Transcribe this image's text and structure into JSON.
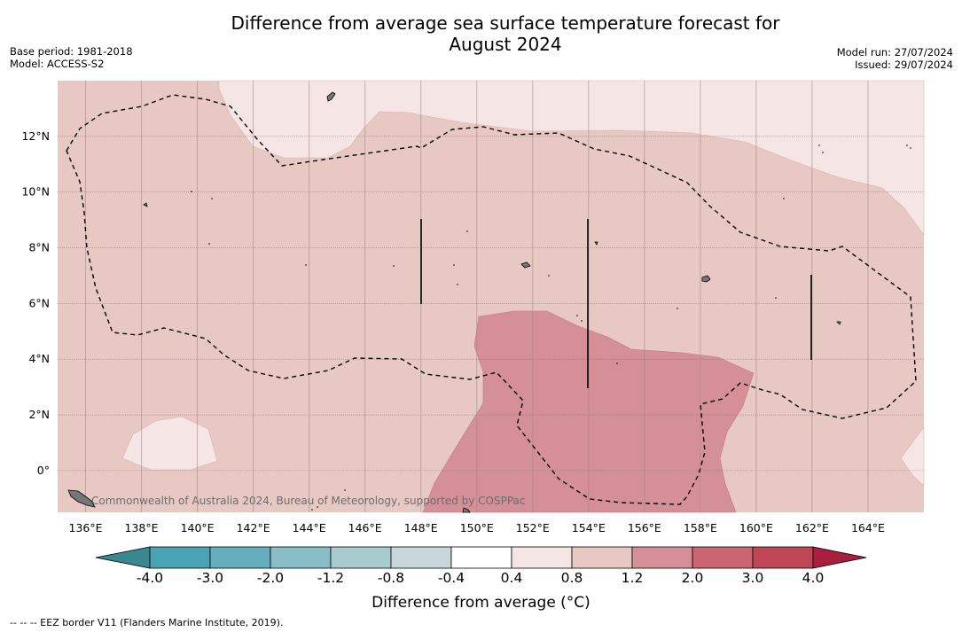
{
  "title_line1": "Difference from average sea surface temperature forecast for",
  "title_line2": "August 2024",
  "base_period": "Base period: 1981-2018",
  "model": "Model: ACCESS-S2",
  "model_run": "Model run: 27/07/2024",
  "issued": "Issued: 29/07/2024",
  "credit": "Commonwealth of Australia 2024, Bureau of Meteorology, supported by COSPPac",
  "footnote": "--  --  -- EEZ border V11 (Flanders Marine Institute, 2019).",
  "map": {
    "lon_range": [
      135.0,
      166.0
    ],
    "lat_range": [
      -1.5,
      14.0
    ],
    "x_ticks": [
      {
        "lon": 136,
        "label": "136°E"
      },
      {
        "lon": 138,
        "label": "138°E"
      },
      {
        "lon": 140,
        "label": "140°E"
      },
      {
        "lon": 142,
        "label": "142°E"
      },
      {
        "lon": 144,
        "label": "144°E"
      },
      {
        "lon": 146,
        "label": "146°E"
      },
      {
        "lon": 148,
        "label": "148°E"
      },
      {
        "lon": 150,
        "label": "150°E"
      },
      {
        "lon": 152,
        "label": "152°E"
      },
      {
        "lon": 154,
        "label": "154°E"
      },
      {
        "lon": 156,
        "label": "156°E"
      },
      {
        "lon": 158,
        "label": "158°E"
      },
      {
        "lon": 160,
        "label": "160°E"
      },
      {
        "lon": 162,
        "label": "162°E"
      },
      {
        "lon": 164,
        "label": "164°E"
      }
    ],
    "y_ticks": [
      {
        "lat": 12,
        "label": "12°N"
      },
      {
        "lat": 10,
        "label": "10°N"
      },
      {
        "lat": 8,
        "label": "8°N"
      },
      {
        "lat": 6,
        "label": "6°N"
      },
      {
        "lat": 4,
        "label": "4°N"
      },
      {
        "lat": 2,
        "label": "2°N"
      },
      {
        "lat": 0,
        "label": "0°"
      }
    ],
    "grid": true
  },
  "colorbar": {
    "title": "Difference from average (°C)",
    "ticks": [
      "-4.0",
      "-3.0",
      "-2.0",
      "-1.2",
      "-0.8",
      "-0.4",
      "0.4",
      "0.8",
      "1.2",
      "2.0",
      "3.0",
      "4.0"
    ],
    "colors": [
      "#4aa3b5",
      "#67aebd",
      "#88bcc6",
      "#a8cbd0",
      "#c8d7db",
      "#ffffff",
      "#f5e6e5",
      "#e8c8c3",
      "#d48f97",
      "#c96671",
      "#bf4654"
    ],
    "low_extend_color": "#3a8790",
    "high_extend_color": "#a91f3d"
  },
  "legend_items": [
    {
      "name": "EEZ border",
      "style": "dashed"
    }
  ],
  "colors": {
    "level_0_4_0_8": "#f5e6e5",
    "level_0_8_1_2": "#e8c8c3",
    "level_1_2_2_0": "#d48f97"
  }
}
